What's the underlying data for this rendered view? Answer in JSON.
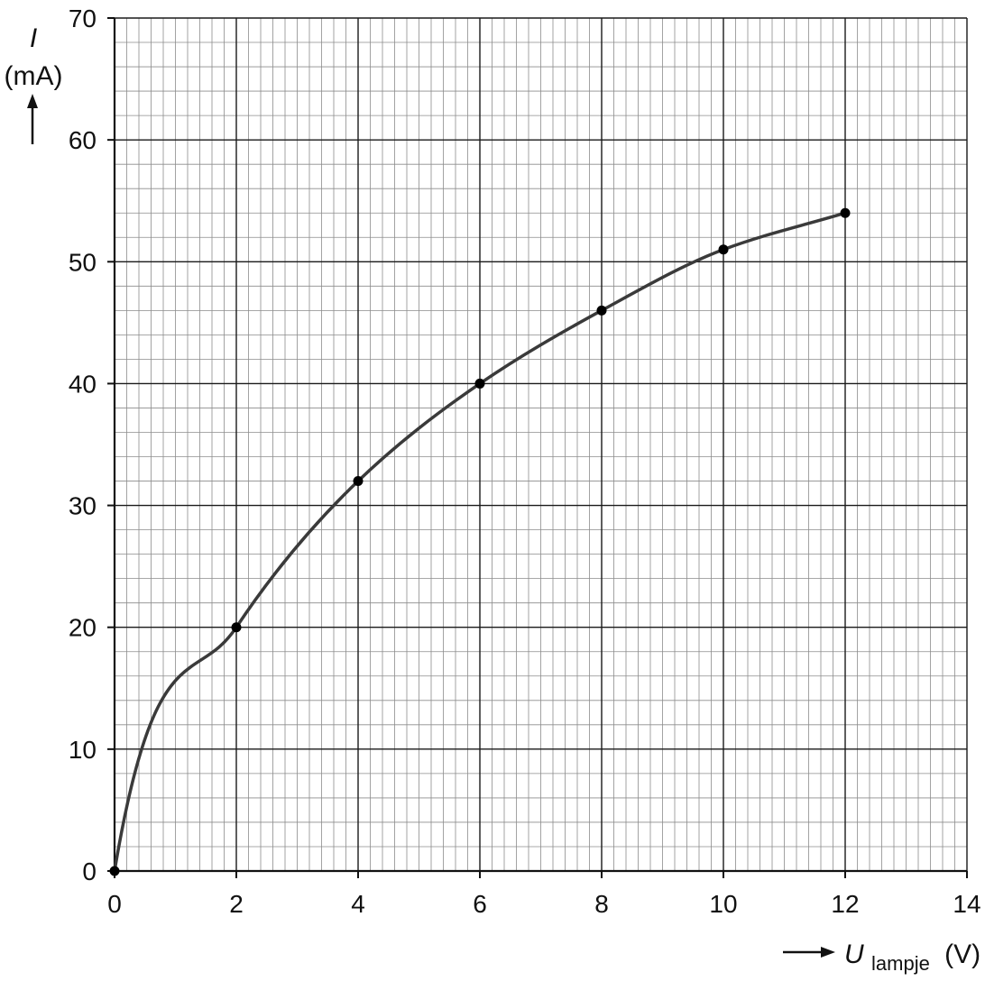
{
  "chart_data": {
    "type": "line",
    "x": [
      0,
      2,
      4,
      6,
      8,
      10,
      12
    ],
    "series": [
      {
        "values": [
          0,
          20,
          32,
          40,
          46,
          51,
          54
        ]
      }
    ],
    "xlim": [
      0,
      14
    ],
    "ylim": [
      0,
      70
    ],
    "xticks": [
      "0",
      "2",
      "4",
      "6",
      "8",
      "10",
      "12",
      "14"
    ],
    "yticks": [
      "0",
      "10",
      "20",
      "30",
      "40",
      "50",
      "60",
      "70"
    ],
    "xlabel": {
      "symbol": "U",
      "subscript": "lampje",
      "unit": "(V)"
    },
    "ylabel": {
      "symbol": "I",
      "unit": "(mA)"
    },
    "grid": true,
    "line_color": "#3a3a3a",
    "marker_color": "#000000"
  }
}
